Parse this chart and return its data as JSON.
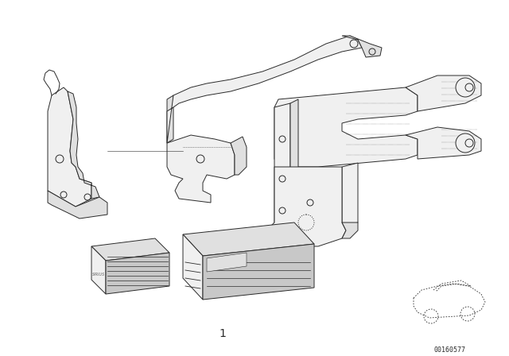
{
  "background_color": "#ffffff",
  "diagram_number": "1",
  "part_number": "00160577",
  "line_color": "#2a2a2a",
  "fill_light": "#f0f0f0",
  "fill_mid": "#e0e0e0",
  "fill_dark": "#c8c8c8",
  "fill_hatch": "#d8d8d8",
  "lw": 0.7,
  "text_color": "#2a2a2a",
  "number_fontsize": 10,
  "partnum_fontsize": 6
}
